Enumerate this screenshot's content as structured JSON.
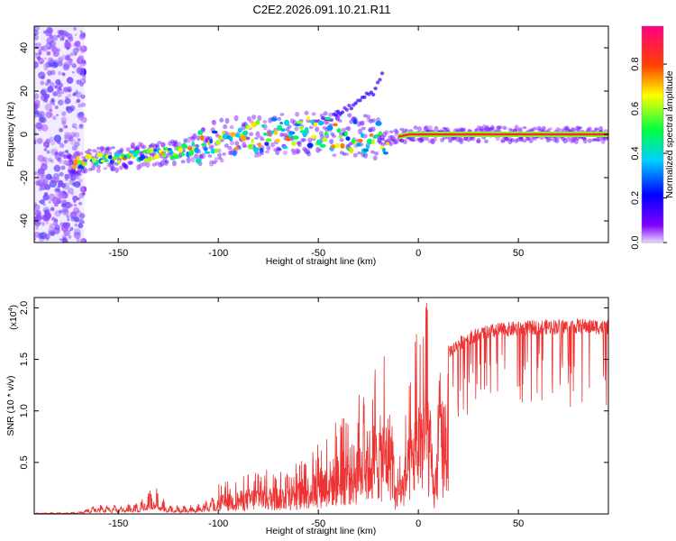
{
  "chart_data": [
    {
      "type": "heatmap",
      "title": "C2E2.2026.091.10.21.R11",
      "xlabel": "Height of straight line (km)",
      "ylabel": "Frequency (Hz)",
      "xlim": [
        -192,
        95
      ],
      "ylim": [
        -50,
        50
      ],
      "xticks": [
        -150,
        -100,
        -50,
        0,
        50
      ],
      "yticks": [
        -40,
        -20,
        0,
        20,
        40
      ],
      "colorbar": {
        "label": "Normalized spectral amplitude",
        "range": [
          0,
          0.97
        ],
        "ticks": [
          0.0,
          0.2,
          0.4,
          0.6,
          0.8
        ],
        "tick_labels": [
          "0.0",
          "0.2",
          "0.4",
          "0.6",
          "0.8"
        ]
      },
      "trend": [
        {
          "x": -172,
          "y": -13
        },
        {
          "x": -150,
          "y": -11
        },
        {
          "x": -120,
          "y": -8
        },
        {
          "x": -100,
          "y": -3
        },
        {
          "x": -75,
          "y": 0
        },
        {
          "x": -50,
          "y": 1
        },
        {
          "x": -30,
          "y": -1
        },
        {
          "x": -15,
          "y": -2
        },
        {
          "x": -5,
          "y": 0
        },
        {
          "x": 15,
          "y": 0
        },
        {
          "x": 95,
          "y": 0
        }
      ],
      "branch": [
        {
          "x": -50,
          "y": 5
        },
        {
          "x": -35,
          "y": 12
        },
        {
          "x": -22,
          "y": 20
        },
        {
          "x": -18,
          "y": 27
        }
      ]
    },
    {
      "type": "line",
      "xlabel": "Height of straight line (km)",
      "ylabel": "SNR (10 * v/v)",
      "multiplier_label": "(x10",
      "multiplier_exponent": "4",
      "multiplier_close": ")",
      "xlim": [
        -192,
        95
      ],
      "ylim": [
        0,
        2.1
      ],
      "xticks": [
        -150,
        -100,
        -50,
        0,
        50
      ],
      "yticks": [
        0.5,
        1.0,
        1.5,
        2.0
      ],
      "ytick_labels": [
        "0.5",
        "1.0",
        "1.5",
        "2.0"
      ],
      "series_color": "#ee3333",
      "envelope": [
        {
          "x": -192,
          "y": 0.01
        },
        {
          "x": -170,
          "y": 0.02
        },
        {
          "x": -160,
          "y": 0.1
        },
        {
          "x": -150,
          "y": 0.08
        },
        {
          "x": -140,
          "y": 0.12
        },
        {
          "x": -132,
          "y": 0.3
        },
        {
          "x": -125,
          "y": 0.08
        },
        {
          "x": -110,
          "y": 0.1
        },
        {
          "x": -100,
          "y": 0.2
        },
        {
          "x": -90,
          "y": 0.25
        },
        {
          "x": -80,
          "y": 0.3
        },
        {
          "x": -70,
          "y": 0.3
        },
        {
          "x": -60,
          "y": 0.35
        },
        {
          "x": -50,
          "y": 0.5
        },
        {
          "x": -40,
          "y": 0.65
        },
        {
          "x": -30,
          "y": 0.8
        },
        {
          "x": -20,
          "y": 1.05
        },
        {
          "x": -13,
          "y": 1.15
        },
        {
          "x": -12,
          "y": 0.3
        },
        {
          "x": -8,
          "y": 0.5
        },
        {
          "x": 0,
          "y": 1.35
        },
        {
          "x": 5,
          "y": 1.5
        },
        {
          "x": 8,
          "y": 0.3
        },
        {
          "x": 10,
          "y": 1.1
        },
        {
          "x": 15,
          "y": 1.6
        },
        {
          "x": 25,
          "y": 1.75
        },
        {
          "x": 40,
          "y": 1.82
        },
        {
          "x": 60,
          "y": 1.85
        },
        {
          "x": 80,
          "y": 1.86
        },
        {
          "x": 95,
          "y": 1.85
        }
      ]
    }
  ]
}
